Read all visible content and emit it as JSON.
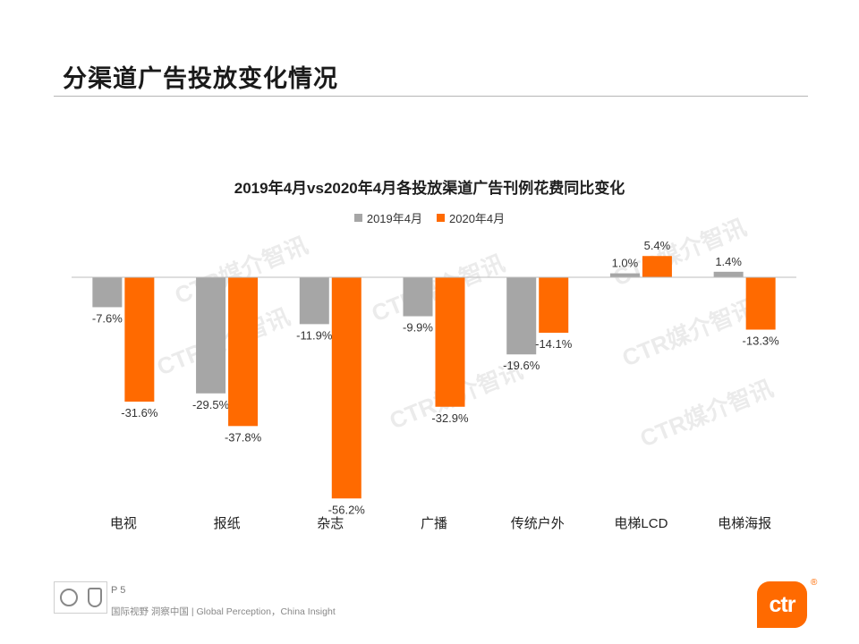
{
  "slide": {
    "title": "分渠道广告投放变化情况",
    "page_number": "P 5",
    "tagline": "国际视野 洞察中国 | Global Perception，China Insight",
    "logo_text": "ctr",
    "logo_mark": "®",
    "watermark": "CTR媒介智讯"
  },
  "colors": {
    "series_2019": "#a6a6a6",
    "series_2020": "#ff6a00",
    "accent": "#ff6a00"
  },
  "chart_data": {
    "type": "bar",
    "title": "2019年4月vs2020年4月各投放渠道广告刊例花费同比变化",
    "categories": [
      "电视",
      "报纸",
      "杂志",
      "广播",
      "传统户外",
      "电梯LCD",
      "电梯海报"
    ],
    "series": [
      {
        "name": "2019年4月",
        "values": [
          -7.6,
          -29.5,
          -11.9,
          -9.9,
          -19.6,
          1.0,
          1.4
        ],
        "labels": [
          "-7.6%",
          "-29.5%",
          "-11.9%",
          "-9.9%",
          "-19.6%",
          "1.0%",
          "1.4%"
        ]
      },
      {
        "name": "2020年4月",
        "values": [
          -31.6,
          -37.8,
          -56.2,
          -32.9,
          -14.1,
          5.4,
          -13.3
        ],
        "labels": [
          "-31.6%",
          "-37.8%",
          "-56.2%",
          "-32.9%",
          "-14.1%",
          "5.4%",
          "-13.3%"
        ]
      }
    ],
    "unit": "%",
    "ylim": [
      -60,
      10
    ],
    "legend_position": "top-center"
  }
}
